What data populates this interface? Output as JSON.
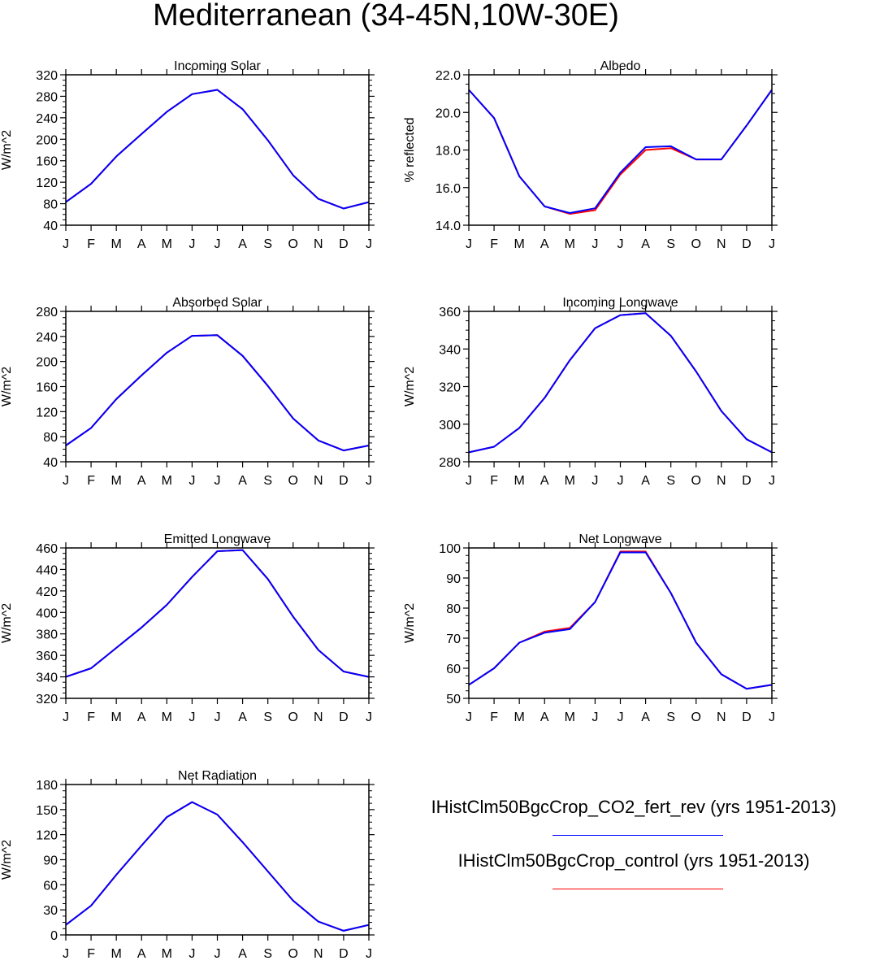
{
  "title": "Mediterranean (34-45N,10W-30E)",
  "colors": {
    "fert": "#0000ff",
    "control": "#ff0000"
  },
  "legend": [
    {
      "label": "IHistClm50BgcCrop_CO2_fert_rev (yrs 1951-2013)",
      "color": "#0000ff"
    },
    {
      "label": "IHistClm50BgcCrop_control (yrs 1951-2013)",
      "color": "#ff0000"
    }
  ],
  "chart_data": [
    {
      "type": "line",
      "title": "Incoming Solar",
      "ylabel": "W/m^2",
      "xlabel": "",
      "categories": [
        "J",
        "F",
        "M",
        "A",
        "M",
        "J",
        "J",
        "A",
        "S",
        "O",
        "N",
        "D",
        "J"
      ],
      "ylim": [
        40,
        320
      ],
      "yticks": [
        "40",
        "80",
        "120",
        "160",
        "200",
        "240",
        "280",
        "320"
      ],
      "series": [
        {
          "name": "IHistClm50BgcCrop_control (yrs 1951-2013)",
          "color": "#ff0000",
          "values": [
            83,
            117,
            168,
            210,
            251,
            284,
            292,
            256,
            198,
            133,
            89,
            71,
            83
          ]
        },
        {
          "name": "IHistClm50BgcCrop_CO2_fert_rev (yrs 1951-2013)",
          "color": "#0000ff",
          "values": [
            83,
            117,
            168,
            210,
            251,
            284,
            292,
            256,
            198,
            133,
            89,
            71,
            83
          ]
        }
      ]
    },
    {
      "type": "line",
      "title": "Albedo",
      "ylabel": "% reflected",
      "xlabel": "",
      "categories": [
        "J",
        "F",
        "M",
        "A",
        "M",
        "J",
        "J",
        "A",
        "S",
        "O",
        "N",
        "D",
        "J"
      ],
      "ylim": [
        14.0,
        22.0
      ],
      "yticks": [
        "14.0",
        "16.0",
        "18.0",
        "20.0",
        "22.0"
      ],
      "series": [
        {
          "name": "IHistClm50BgcCrop_control (yrs 1951-2013)",
          "color": "#ff0000",
          "values": [
            21.2,
            19.7,
            16.6,
            15.0,
            14.6,
            14.8,
            16.7,
            18.0,
            18.1,
            17.5,
            17.5,
            19.3,
            21.2
          ]
        },
        {
          "name": "IHistClm50BgcCrop_CO2_fert_rev (yrs 1951-2013)",
          "color": "#0000ff",
          "values": [
            21.2,
            19.7,
            16.6,
            15.0,
            14.65,
            14.9,
            16.8,
            18.15,
            18.2,
            17.5,
            17.5,
            19.3,
            21.2
          ]
        }
      ]
    },
    {
      "type": "line",
      "title": "Absorbed Solar",
      "ylabel": "W/m^2",
      "xlabel": "",
      "categories": [
        "J",
        "F",
        "M",
        "A",
        "M",
        "J",
        "J",
        "A",
        "S",
        "O",
        "N",
        "D",
        "J"
      ],
      "ylim": [
        40,
        280
      ],
      "yticks": [
        "40",
        "80",
        "120",
        "160",
        "200",
        "240",
        "280"
      ],
      "series": [
        {
          "name": "IHistClm50BgcCrop_control (yrs 1951-2013)",
          "color": "#ff0000",
          "values": [
            66,
            94,
            140,
            178,
            214,
            241,
            242,
            209,
            161,
            109,
            74,
            58,
            66
          ]
        },
        {
          "name": "IHistClm50BgcCrop_CO2_fert_rev (yrs 1951-2013)",
          "color": "#0000ff",
          "values": [
            66,
            94,
            140,
            178,
            214,
            241,
            242,
            209,
            161,
            109,
            74,
            58,
            66
          ]
        }
      ]
    },
    {
      "type": "line",
      "title": "Incoming Longwave",
      "ylabel": "W/m^2",
      "xlabel": "",
      "categories": [
        "J",
        "F",
        "M",
        "A",
        "M",
        "J",
        "J",
        "A",
        "S",
        "O",
        "N",
        "D",
        "J"
      ],
      "ylim": [
        280,
        360
      ],
      "yticks": [
        "280",
        "300",
        "320",
        "340",
        "360"
      ],
      "series": [
        {
          "name": "IHistClm50BgcCrop_control (yrs 1951-2013)",
          "color": "#ff0000",
          "values": [
            285,
            288,
            298,
            314,
            334,
            351,
            358,
            359,
            347,
            328,
            307,
            292,
            285
          ]
        },
        {
          "name": "IHistClm50BgcCrop_CO2_fert_rev (yrs 1951-2013)",
          "color": "#0000ff",
          "values": [
            285,
            288,
            298,
            314,
            334,
            351,
            358,
            359,
            347,
            328,
            307,
            292,
            285
          ]
        }
      ]
    },
    {
      "type": "line",
      "title": "Emitted Longwave",
      "ylabel": "W/m^2",
      "xlabel": "",
      "categories": [
        "J",
        "F",
        "M",
        "A",
        "M",
        "J",
        "J",
        "A",
        "S",
        "O",
        "N",
        "D",
        "J"
      ],
      "ylim": [
        320,
        460
      ],
      "yticks": [
        "320",
        "340",
        "360",
        "380",
        "400",
        "420",
        "440",
        "460"
      ],
      "series": [
        {
          "name": "IHistClm50BgcCrop_control (yrs 1951-2013)",
          "color": "#ff0000",
          "values": [
            340,
            348,
            367,
            386,
            407,
            433,
            457,
            458,
            431,
            396,
            365,
            345,
            340
          ]
        },
        {
          "name": "IHistClm50BgcCrop_CO2_fert_rev (yrs 1951-2013)",
          "color": "#0000ff",
          "values": [
            340,
            348,
            367,
            386,
            407,
            433,
            457,
            458,
            431,
            396,
            365,
            345,
            340
          ]
        }
      ]
    },
    {
      "type": "line",
      "title": "Net Longwave",
      "ylabel": "W/m^2",
      "xlabel": "",
      "categories": [
        "J",
        "F",
        "M",
        "A",
        "M",
        "J",
        "J",
        "A",
        "S",
        "O",
        "N",
        "D",
        "J"
      ],
      "ylim": [
        50,
        100
      ],
      "yticks": [
        "50",
        "60",
        "70",
        "80",
        "90",
        "100"
      ],
      "series": [
        {
          "name": "IHistClm50BgcCrop_control (yrs 1951-2013)",
          "color": "#ff0000",
          "values": [
            54.5,
            60,
            68.5,
            72.2,
            73.4,
            82,
            98.8,
            98.8,
            85,
            68.5,
            58,
            53.2,
            54.5
          ]
        },
        {
          "name": "IHistClm50BgcCrop_CO2_fert_rev (yrs 1951-2013)",
          "color": "#0000ff",
          "values": [
            54.5,
            60,
            68.5,
            71.8,
            73.0,
            82,
            98.5,
            98.5,
            85,
            68.5,
            58,
            53.2,
            54.5
          ]
        }
      ]
    },
    {
      "type": "line",
      "title": "Net Radiation",
      "ylabel": "W/m^2",
      "xlabel": "",
      "categories": [
        "J",
        "F",
        "M",
        "A",
        "M",
        "J",
        "J",
        "A",
        "S",
        "O",
        "N",
        "D",
        "J"
      ],
      "ylim": [
        0,
        180
      ],
      "yticks": [
        "0",
        "30",
        "60",
        "90",
        "120",
        "150",
        "180"
      ],
      "series": [
        {
          "name": "IHistClm50BgcCrop_control (yrs 1951-2013)",
          "color": "#ff0000",
          "values": [
            12,
            35,
            72,
            107,
            141,
            159,
            144,
            111,
            76,
            41,
            16,
            5,
            12
          ]
        },
        {
          "name": "IHistClm50BgcCrop_CO2_fert_rev (yrs 1951-2013)",
          "color": "#0000ff",
          "values": [
            12,
            35,
            72,
            107,
            141,
            159,
            144,
            111,
            76,
            41,
            16,
            5,
            12
          ]
        }
      ]
    }
  ]
}
